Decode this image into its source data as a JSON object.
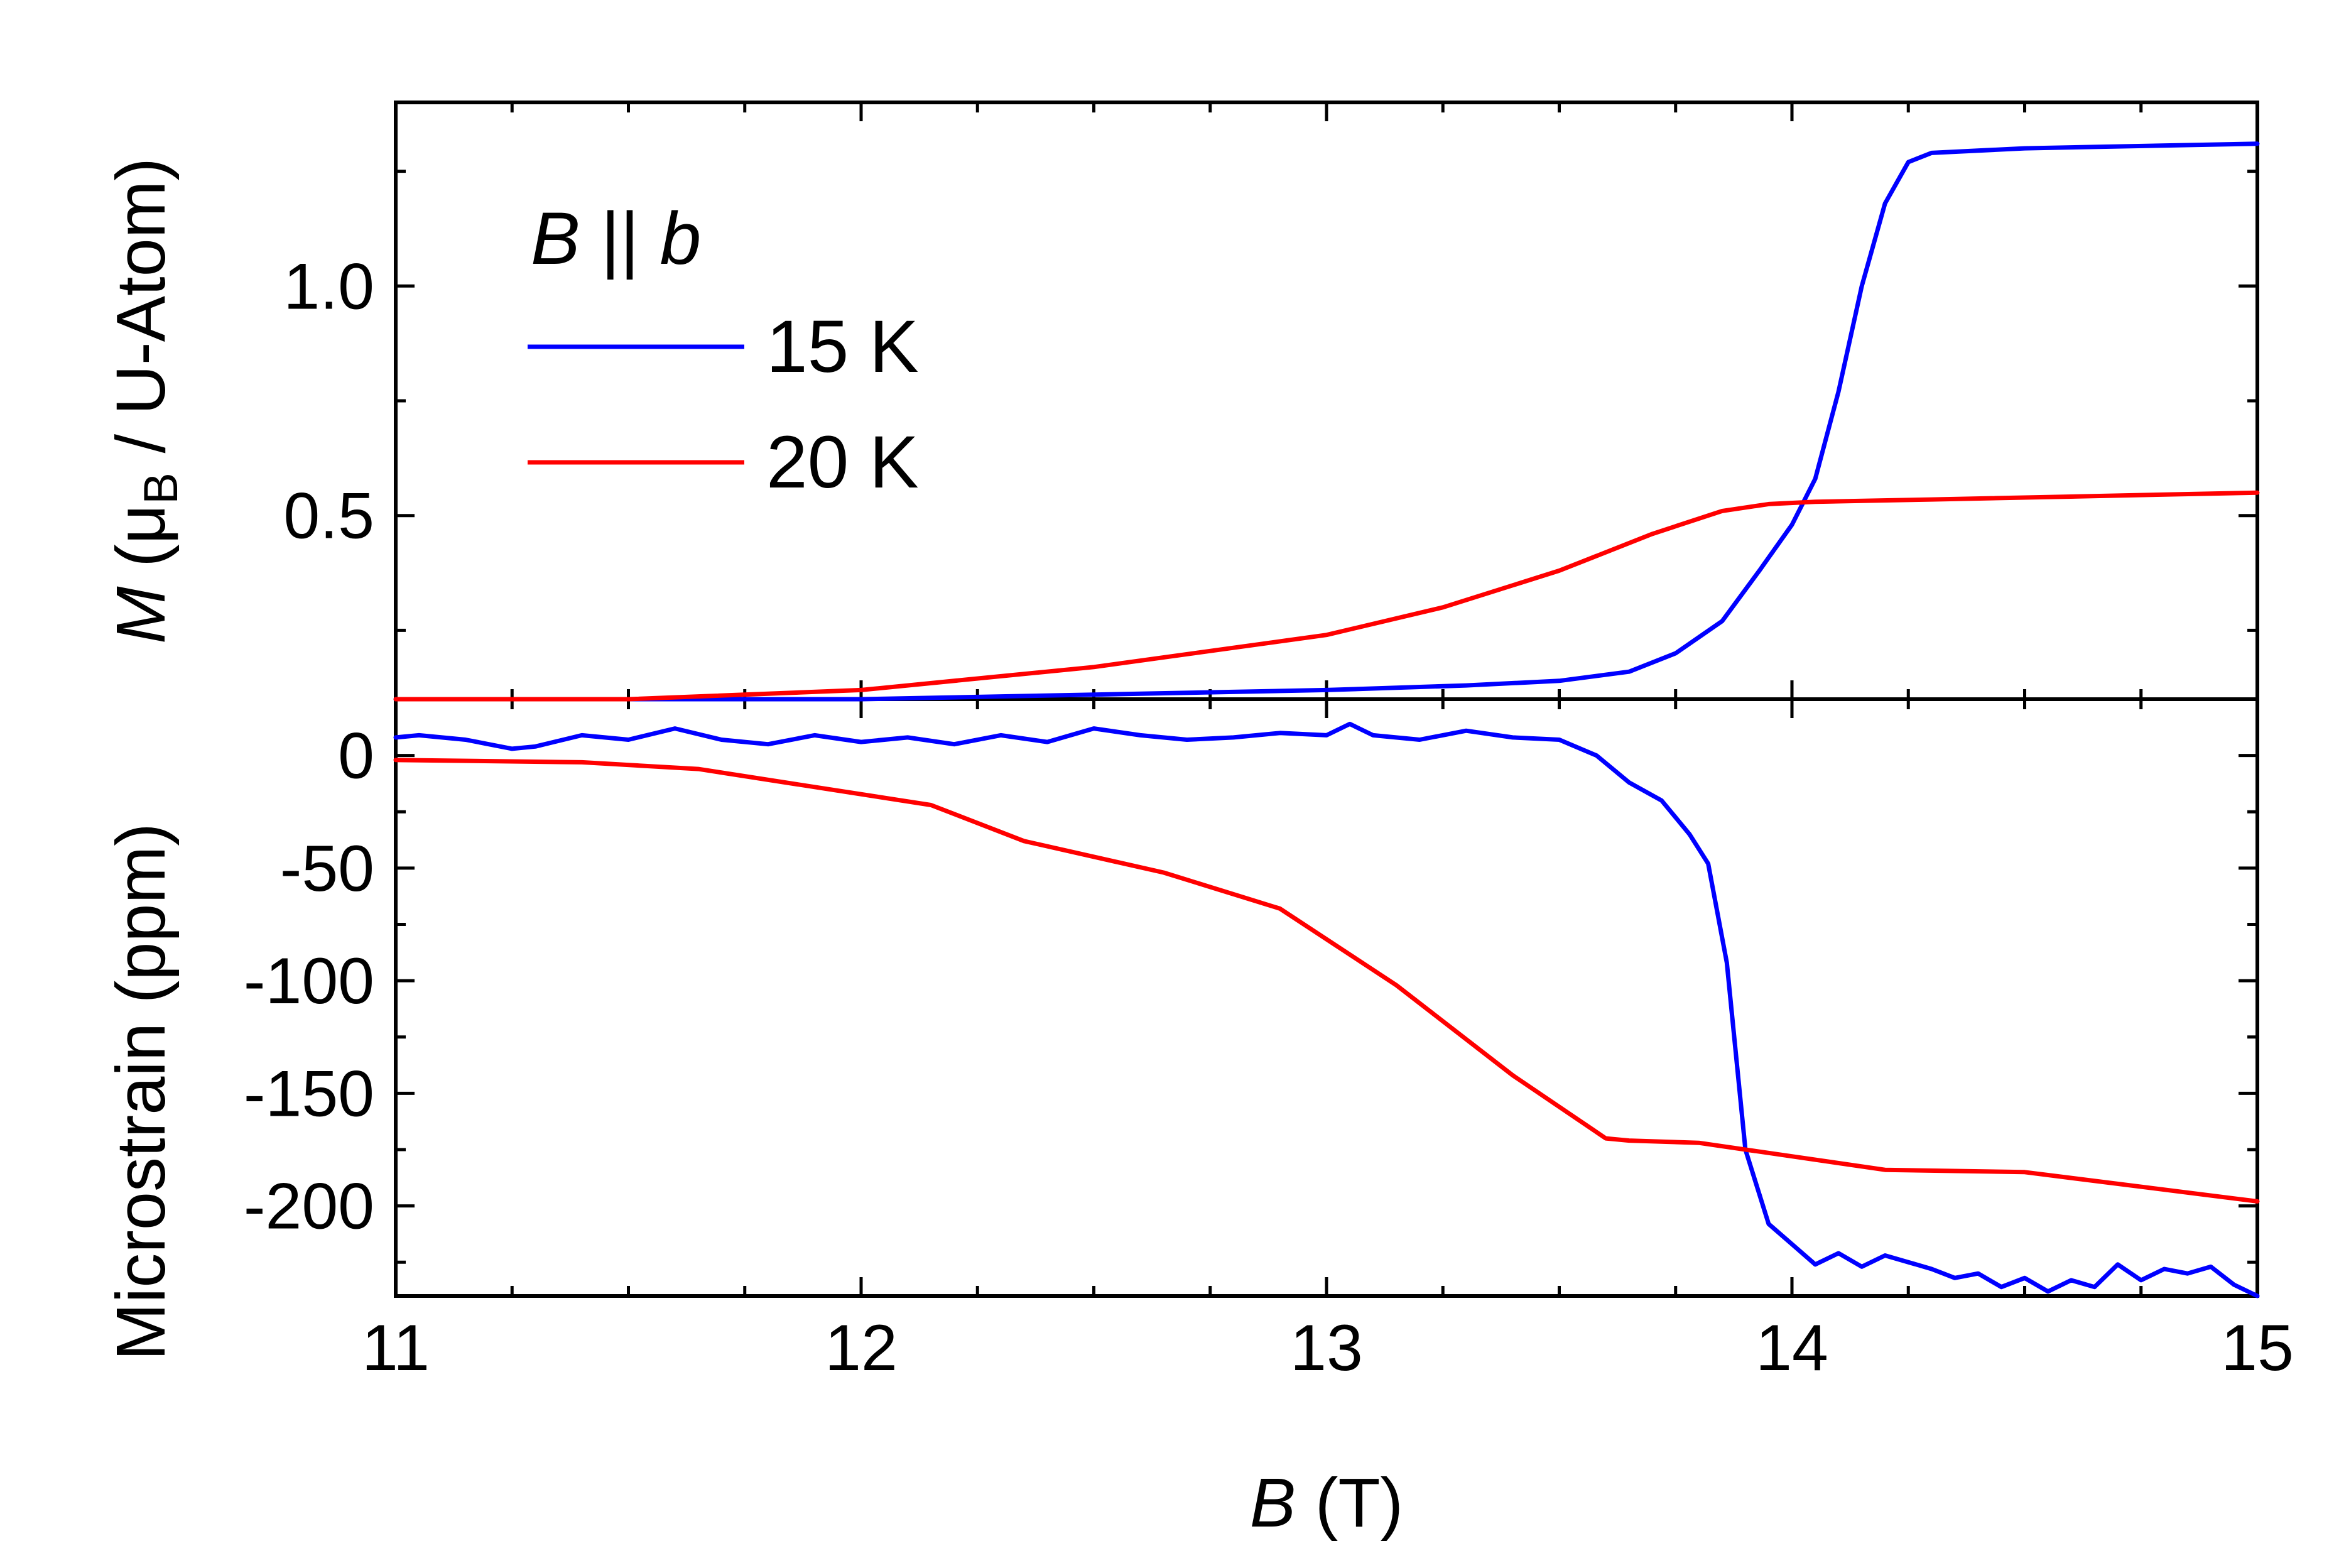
{
  "chart_data": [
    {
      "name": "top-panel",
      "type": "line",
      "ylabel": "M (μB / U-Atom)",
      "ylabel_parts": {
        "symbol": "M",
        "open": " (μ",
        "sub": "B",
        "rest": " / U-Atom)"
      },
      "xlim": [
        11,
        15
      ],
      "ylim": [
        0.1,
        1.4
      ],
      "ytick_values": [
        0.5,
        1.0
      ],
      "ytick_labels": [
        "0.5",
        "1.0"
      ],
      "legend": {
        "title": "B || b",
        "title_parts": {
          "a": "B",
          "mid": " || ",
          "b": "b"
        },
        "placement": "top-left"
      },
      "series": [
        {
          "name": "15 K",
          "color": "#0000ff",
          "x": [
            11.0,
            11.5,
            12.0,
            12.5,
            13.0,
            13.3,
            13.5,
            13.65,
            13.75,
            13.85,
            13.93,
            14.0,
            14.05,
            14.1,
            14.15,
            14.2,
            14.25,
            14.3,
            14.5,
            15.0
          ],
          "y": [
            0.09,
            0.095,
            0.1,
            0.11,
            0.12,
            0.13,
            0.14,
            0.16,
            0.2,
            0.27,
            0.38,
            0.48,
            0.58,
            0.77,
            1.0,
            1.18,
            1.27,
            1.29,
            1.3,
            1.31
          ]
        },
        {
          "name": "20 K",
          "color": "#ff0000",
          "x": [
            11.0,
            11.5,
            12.0,
            12.5,
            13.0,
            13.25,
            13.5,
            13.7,
            13.85,
            13.95,
            14.05,
            14.3,
            15.0
          ],
          "y": [
            0.09,
            0.1,
            0.12,
            0.17,
            0.24,
            0.3,
            0.38,
            0.46,
            0.51,
            0.525,
            0.53,
            0.535,
            0.55
          ]
        }
      ]
    },
    {
      "name": "bottom-panel",
      "type": "line",
      "xlabel": "B (T)",
      "xlabel_parts": {
        "symbol": "B",
        "rest": " (T)"
      },
      "ylabel": "Microstrain (ppm)",
      "xlim": [
        11,
        15
      ],
      "ylim": [
        -240,
        25
      ],
      "xtick_values": [
        11,
        12,
        13,
        14,
        15
      ],
      "xtick_labels": [
        "11",
        "12",
        "13",
        "14",
        "15"
      ],
      "ytick_values": [
        -200,
        -150,
        -100,
        -50,
        0
      ],
      "ytick_labels": [
        "-200",
        "-150",
        "-100",
        "-50",
        "0"
      ],
      "series": [
        {
          "name": "15 K",
          "color": "#0000ff",
          "x": [
            11.0,
            11.05,
            11.15,
            11.25,
            11.3,
            11.4,
            11.5,
            11.6,
            11.7,
            11.8,
            11.9,
            12.0,
            12.1,
            12.2,
            12.3,
            12.4,
            12.5,
            12.6,
            12.7,
            12.8,
            12.9,
            13.0,
            13.05,
            13.1,
            13.2,
            13.3,
            13.4,
            13.5,
            13.58,
            13.65,
            13.72,
            13.78,
            13.82,
            13.86,
            13.9,
            13.95,
            14.0,
            14.05,
            14.1,
            14.15,
            14.2,
            14.25,
            14.3,
            14.35,
            14.4,
            14.45,
            14.5,
            14.55,
            14.6,
            14.65,
            14.7,
            14.75,
            14.8,
            14.85,
            14.9,
            14.95,
            15.0
          ],
          "y": [
            8,
            9,
            7,
            3,
            4,
            9,
            7,
            12,
            7,
            5,
            9,
            6,
            8,
            5,
            9,
            6,
            12,
            9,
            7,
            8,
            10,
            9,
            14,
            9,
            7,
            11,
            8,
            7,
            0,
            -12,
            -20,
            -35,
            -48,
            -92,
            -175,
            -208,
            -217,
            -226,
            -221,
            -227,
            -222,
            -225,
            -228,
            -232,
            -230,
            -236,
            -232,
            -238,
            -233,
            -236,
            -226,
            -233,
            -228,
            -230,
            -227,
            -235,
            -242
          ]
        },
        {
          "name": "20 K",
          "color": "#ff0000",
          "x": [
            11.0,
            11.4,
            11.65,
            12.15,
            12.35,
            12.65,
            12.9,
            13.15,
            13.4,
            13.6,
            13.65,
            13.8,
            14.0,
            14.2,
            14.5,
            15.0
          ],
          "y": [
            -2,
            -3,
            -6,
            -22,
            -38,
            -52,
            -68,
            -102,
            -142,
            -170,
            -171,
            -172,
            -178,
            -184,
            -185,
            -198
          ]
        }
      ]
    }
  ]
}
